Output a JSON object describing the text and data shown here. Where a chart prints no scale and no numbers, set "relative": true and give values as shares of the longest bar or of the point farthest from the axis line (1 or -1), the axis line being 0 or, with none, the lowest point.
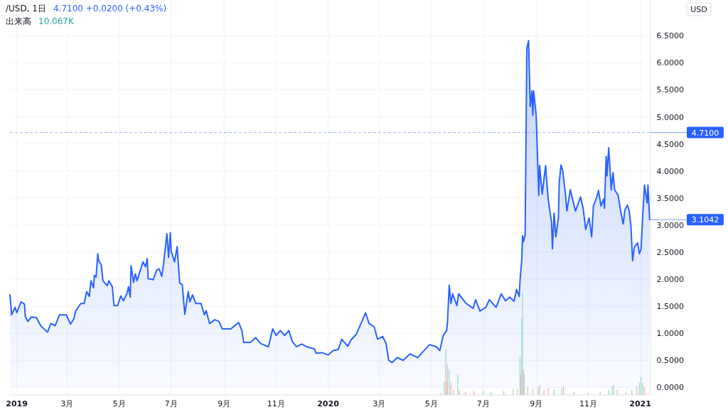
{
  "chart_data": [
    {
      "type": "area",
      "title": "/USD, 1日",
      "subtitle": "4.7100 +0.0200 (+0.43%)",
      "ylabel": "USD",
      "x": [
        "2018-12-24",
        "2018-12-26",
        "2018-12-30",
        "2019-01-01",
        "2019-01-06",
        "2019-01-10",
        "2019-01-11",
        "2019-01-14",
        "2019-01-18",
        "2019-01-24",
        "2019-01-29",
        "2019-02-06",
        "2019-02-10",
        "2019-02-15",
        "2019-02-20",
        "2019-02-28",
        "2019-03-05",
        "2019-03-09",
        "2019-03-11",
        "2019-03-17",
        "2019-03-21",
        "2019-03-24",
        "2019-03-27",
        "2019-03-29",
        "2019-04-01",
        "2019-04-02",
        "2019-04-04",
        "2019-04-06",
        "2019-04-07",
        "2019-04-10",
        "2019-04-12",
        "2019-04-17",
        "2019-04-19",
        "2019-04-23",
        "2019-04-25",
        "2019-04-29",
        "2019-05-03",
        "2019-05-06",
        "2019-05-10",
        "2019-05-12",
        "2019-05-14",
        "2019-05-15",
        "2019-05-18",
        "2019-05-20",
        "2019-05-22",
        "2019-05-29",
        "2019-06-01",
        "2019-06-03",
        "2019-06-04",
        "2019-06-10",
        "2019-06-14",
        "2019-06-17",
        "2019-06-20",
        "2019-06-22",
        "2019-06-26",
        "2019-06-28",
        "2019-06-30",
        "2019-07-01",
        "2019-07-05",
        "2019-07-08",
        "2019-07-11",
        "2019-07-14",
        "2019-07-17",
        "2019-07-21",
        "2019-07-23",
        "2019-07-26",
        "2019-07-30",
        "2019-08-05",
        "2019-08-09",
        "2019-08-11",
        "2019-08-15",
        "2019-08-21",
        "2019-08-26",
        "2019-08-30",
        "2019-09-05",
        "2019-09-09",
        "2019-09-18",
        "2019-09-22",
        "2019-09-24",
        "2019-10-02",
        "2019-10-08",
        "2019-10-14",
        "2019-10-23",
        "2019-10-28",
        "2019-11-01",
        "2019-11-06",
        "2019-11-11",
        "2019-11-16",
        "2019-11-20",
        "2019-11-25",
        "2019-12-01",
        "2019-12-07",
        "2019-12-16",
        "2019-12-18",
        "2019-12-25",
        "2020-01-01",
        "2020-01-07",
        "2020-01-13",
        "2020-01-17",
        "2020-01-24",
        "2020-01-28",
        "2020-02-03",
        "2020-02-08",
        "2020-02-14",
        "2020-02-18",
        "2020-02-24",
        "2020-02-28",
        "2020-03-05",
        "2020-03-09",
        "2020-03-12",
        "2020-03-16",
        "2020-03-22",
        "2020-03-29",
        "2020-04-06",
        "2020-04-15",
        "2020-04-19",
        "2020-04-29",
        "2020-05-07",
        "2020-05-11",
        "2020-05-15",
        "2020-05-19",
        "2020-05-20",
        "2020-05-22",
        "2020-05-24",
        "2020-05-26",
        "2020-05-31",
        "2020-06-02",
        "2020-06-11",
        "2020-06-19",
        "2020-06-22",
        "2020-06-27",
        "2020-07-04",
        "2020-07-08",
        "2020-07-16",
        "2020-07-22",
        "2020-07-27",
        "2020-08-01",
        "2020-08-06",
        "2020-08-09",
        "2020-08-12",
        "2020-08-13",
        "2020-08-15",
        "2020-08-16",
        "2020-08-17",
        "2020-08-19",
        "2020-08-21",
        "2020-08-23",
        "2020-08-25",
        "2020-08-27",
        "2020-08-28",
        "2020-08-29",
        "2020-09-01",
        "2020-09-04",
        "2020-09-05",
        "2020-09-08",
        "2020-09-10",
        "2020-09-12",
        "2020-09-15",
        "2020-09-19",
        "2020-09-20",
        "2020-09-22",
        "2020-09-24",
        "2020-09-27",
        "2020-09-28",
        "2020-09-30",
        "2020-10-02",
        "2020-10-05",
        "2020-10-07",
        "2020-10-11",
        "2020-10-15",
        "2020-10-17",
        "2020-10-23",
        "2020-10-26",
        "2020-10-29",
        "2020-11-02",
        "2020-11-05",
        "2020-11-07",
        "2020-11-11",
        "2020-11-13",
        "2020-11-16",
        "2020-11-19",
        "2020-11-20",
        "2020-11-22",
        "2020-11-23",
        "2020-11-25",
        "2020-11-28",
        "2020-11-30",
        "2020-12-02",
        "2020-12-06",
        "2020-12-09",
        "2020-12-12",
        "2020-12-14",
        "2020-12-17",
        "2020-12-19",
        "2020-12-21",
        "2020-12-23",
        "2020-12-25",
        "2020-12-29",
        "2020-12-31",
        "2021-01-02",
        "2021-01-04",
        "2021-01-06",
        "2021-01-09",
        "2021-01-10",
        "2021-01-12"
      ],
      "series": [
        {
          "color": "#2962ff",
          "values": [
            1.71,
            1.34,
            1.48,
            1.38,
            1.58,
            1.54,
            1.31,
            1.22,
            1.3,
            1.29,
            1.14,
            1.02,
            1.18,
            1.14,
            1.34,
            1.34,
            1.17,
            1.27,
            1.41,
            1.55,
            1.55,
            1.77,
            1.68,
            1.97,
            1.84,
            2.07,
            2.04,
            2.47,
            2.34,
            2.27,
            1.97,
            1.88,
            1.97,
            1.86,
            1.51,
            1.51,
            1.69,
            1.6,
            1.73,
            1.86,
            1.67,
            2.25,
            1.94,
            2.1,
            1.97,
            2.32,
            2.23,
            2.38,
            2.01,
            1.99,
            2.17,
            2.19,
            2.05,
            2.27,
            2.84,
            2.4,
            2.86,
            2.52,
            2.32,
            2.6,
            1.93,
            1.9,
            1.35,
            1.77,
            1.58,
            1.71,
            1.55,
            1.55,
            1.34,
            1.42,
            1.18,
            1.25,
            1.22,
            1.08,
            1.08,
            1.08,
            1.2,
            1.05,
            0.83,
            0.83,
            0.92,
            0.81,
            0.75,
            1.08,
            0.96,
            1.05,
            0.96,
            1.05,
            0.85,
            0.75,
            0.8,
            0.75,
            0.71,
            0.63,
            0.64,
            0.6,
            0.68,
            0.7,
            0.89,
            0.76,
            0.88,
            0.98,
            1.16,
            1.38,
            1.18,
            1.12,
            0.89,
            0.94,
            0.81,
            0.5,
            0.46,
            0.55,
            0.5,
            0.62,
            0.55,
            0.62,
            0.79,
            0.75,
            0.68,
            0.96,
            1.05,
            1.21,
            1.89,
            1.55,
            1.73,
            1.51,
            1.73,
            1.55,
            1.46,
            1.62,
            1.41,
            1.48,
            1.62,
            1.48,
            1.73,
            1.6,
            1.67,
            1.59,
            1.81,
            1.68,
            1.97,
            2.34,
            2.8,
            2.69,
            2.82,
            6.26,
            6.41,
            5.19,
            5.48,
            5.03,
            5.48,
            5.02,
            3.55,
            4.1,
            3.57,
            3.83,
            4.1,
            3.48,
            3.05,
            2.56,
            3.22,
            2.78,
            3.13,
            3.78,
            4.11,
            4.01,
            3.61,
            3.26,
            3.65,
            3.39,
            3.26,
            3.52,
            3.31,
            2.92,
            3.13,
            2.78,
            3.35,
            3.52,
            3.64,
            3.35,
            3.48,
            3.31,
            4.27,
            3.91,
            4.43,
            3.65,
            3.97,
            3.65,
            3.55,
            3.26,
            3.02,
            3.28,
            3.37,
            3.26,
            2.99,
            2.34,
            2.59,
            2.67,
            2.47,
            2.56,
            3.22,
            3.74,
            3.41,
            3.74,
            3.1
          ]
        }
      ],
      "xlim": [
        "2018-12-24",
        "2021-01-13"
      ],
      "xticks": [
        {
          "value": "2019-01-01",
          "label": "2019"
        },
        {
          "value": "2019-03-01",
          "label": "3月"
        },
        {
          "value": "2019-05-01",
          "label": "5月"
        },
        {
          "value": "2019-07-01",
          "label": "7月"
        },
        {
          "value": "2019-09-01",
          "label": "9月"
        },
        {
          "value": "2019-11-01",
          "label": "11月"
        },
        {
          "value": "2020-01-01",
          "label": "2020"
        },
        {
          "value": "2020-03-01",
          "label": "3月"
        },
        {
          "value": "2020-05-01",
          "label": "5月"
        },
        {
          "value": "2020-07-01",
          "label": "7月"
        },
        {
          "value": "2020-09-01",
          "label": "9月"
        },
        {
          "value": "2020-11-01",
          "label": "11月"
        },
        {
          "value": "2021-01-01",
          "label": "2021"
        }
      ],
      "ylim": [
        -0.14,
        7.16
      ],
      "yticks": [
        {
          "value": 0,
          "label": "0.0000"
        },
        {
          "value": 0.5,
          "label": "0.5000"
        },
        {
          "value": 1,
          "label": "1.0000"
        },
        {
          "value": 1.5,
          "label": "1.5000"
        },
        {
          "value": 2,
          "label": "2.0000"
        },
        {
          "value": 2.5,
          "label": "2.5000"
        },
        {
          "value": 3,
          "label": "3.0000"
        },
        {
          "value": 3.5,
          "label": "3.5000"
        },
        {
          "value": 4,
          "label": "4.0000"
        },
        {
          "value": 4.5,
          "label": "4.5000"
        },
        {
          "value": 5,
          "label": "5.0000"
        },
        {
          "value": 5.5,
          "label": "5.5000"
        },
        {
          "value": 6,
          "label": "6.0000"
        },
        {
          "value": 6.5,
          "label": "6.5000"
        }
      ],
      "grid": true,
      "ref_lines": [
        {
          "axis": "y",
          "value": 4.71,
          "label": "4.7100",
          "color": "#2962ff",
          "line_style": "dashed"
        }
      ],
      "annotations": [
        "3.1042"
      ]
    },
    {
      "type": "bar",
      "title": "出来高",
      "subtitle": "10.067K",
      "relative": true,
      "xlim": [
        "2018-12-24",
        "2021-01-13"
      ],
      "x": [
        "2020-05-12",
        "2020-05-16",
        "2020-05-18",
        "2020-05-19",
        "2020-05-20",
        "2020-05-22",
        "2020-05-24",
        "2020-05-27",
        "2020-06-01",
        "2020-06-03",
        "2020-06-10",
        "2020-06-20",
        "2020-07-01",
        "2020-07-10",
        "2020-07-25",
        "2020-08-05",
        "2020-08-10",
        "2020-08-13",
        "2020-08-14",
        "2020-08-15",
        "2020-08-16",
        "2020-08-17",
        "2020-08-18",
        "2020-08-22",
        "2020-08-28",
        "2020-09-03",
        "2020-09-05",
        "2020-09-10",
        "2020-09-15",
        "2020-09-22",
        "2020-10-01",
        "2020-10-03",
        "2020-10-15",
        "2020-11-01",
        "2020-11-15",
        "2020-11-25",
        "2020-11-29",
        "2020-12-01",
        "2020-12-05",
        "2020-12-15",
        "2020-12-22",
        "2020-12-28",
        "2020-12-31",
        "2021-01-02",
        "2021-01-04",
        "2021-01-06"
      ],
      "values": [
        0.02,
        0.13,
        0.45,
        0.13,
        0.3,
        0.25,
        0.12,
        0.05,
        0.2,
        0.05,
        0.03,
        0.04,
        0.04,
        0.03,
        0.04,
        0.06,
        0.06,
        0.37,
        0.2,
        0.76,
        1.0,
        0.25,
        0.2,
        0.08,
        0.06,
        0.08,
        0.1,
        0.05,
        0.07,
        0.05,
        0.07,
        0.09,
        0.03,
        0.02,
        0.03,
        0.05,
        0.09,
        0.1,
        0.05,
        0.03,
        0.05,
        0.08,
        0.12,
        0.18,
        0.12,
        0.08
      ],
      "colors": [
        "#f7b9b5",
        "#a7dcd5",
        "#a7dcd5",
        "#f7b9b5",
        "#f7b9b5",
        "#a7dcd5",
        "#f7b9b5",
        "#f7b9b5",
        "#a7dcd5",
        "#f7b9b5",
        "#f7b9b5",
        "#f7b9b5",
        "#a7dcd5",
        "#a7dcd5",
        "#a7dcd5",
        "#a7dcd5",
        "#f7b9b5",
        "#a7dcd5",
        "#f7b9b5",
        "#a7dcd5",
        "#a7dcd5",
        "#f7b9b5",
        "#a7dcd5",
        "#f7b9b5",
        "#a7dcd5",
        "#f7b9b5",
        "#a7dcd5",
        "#f7b9b5",
        "#f7b9b5",
        "#a7dcd5",
        "#f7b9b5",
        "#a7dcd5",
        "#f7b9b5",
        "#a7dcd5",
        "#f7b9b5",
        "#a7dcd5",
        "#a7dcd5",
        "#a7dcd5",
        "#f7b9b5",
        "#f7b9b5",
        "#a7dcd5",
        "#f7b9b5",
        "#a7dcd5",
        "#a7dcd5",
        "#a7dcd5",
        "#f7b9b5"
      ]
    }
  ]
}
